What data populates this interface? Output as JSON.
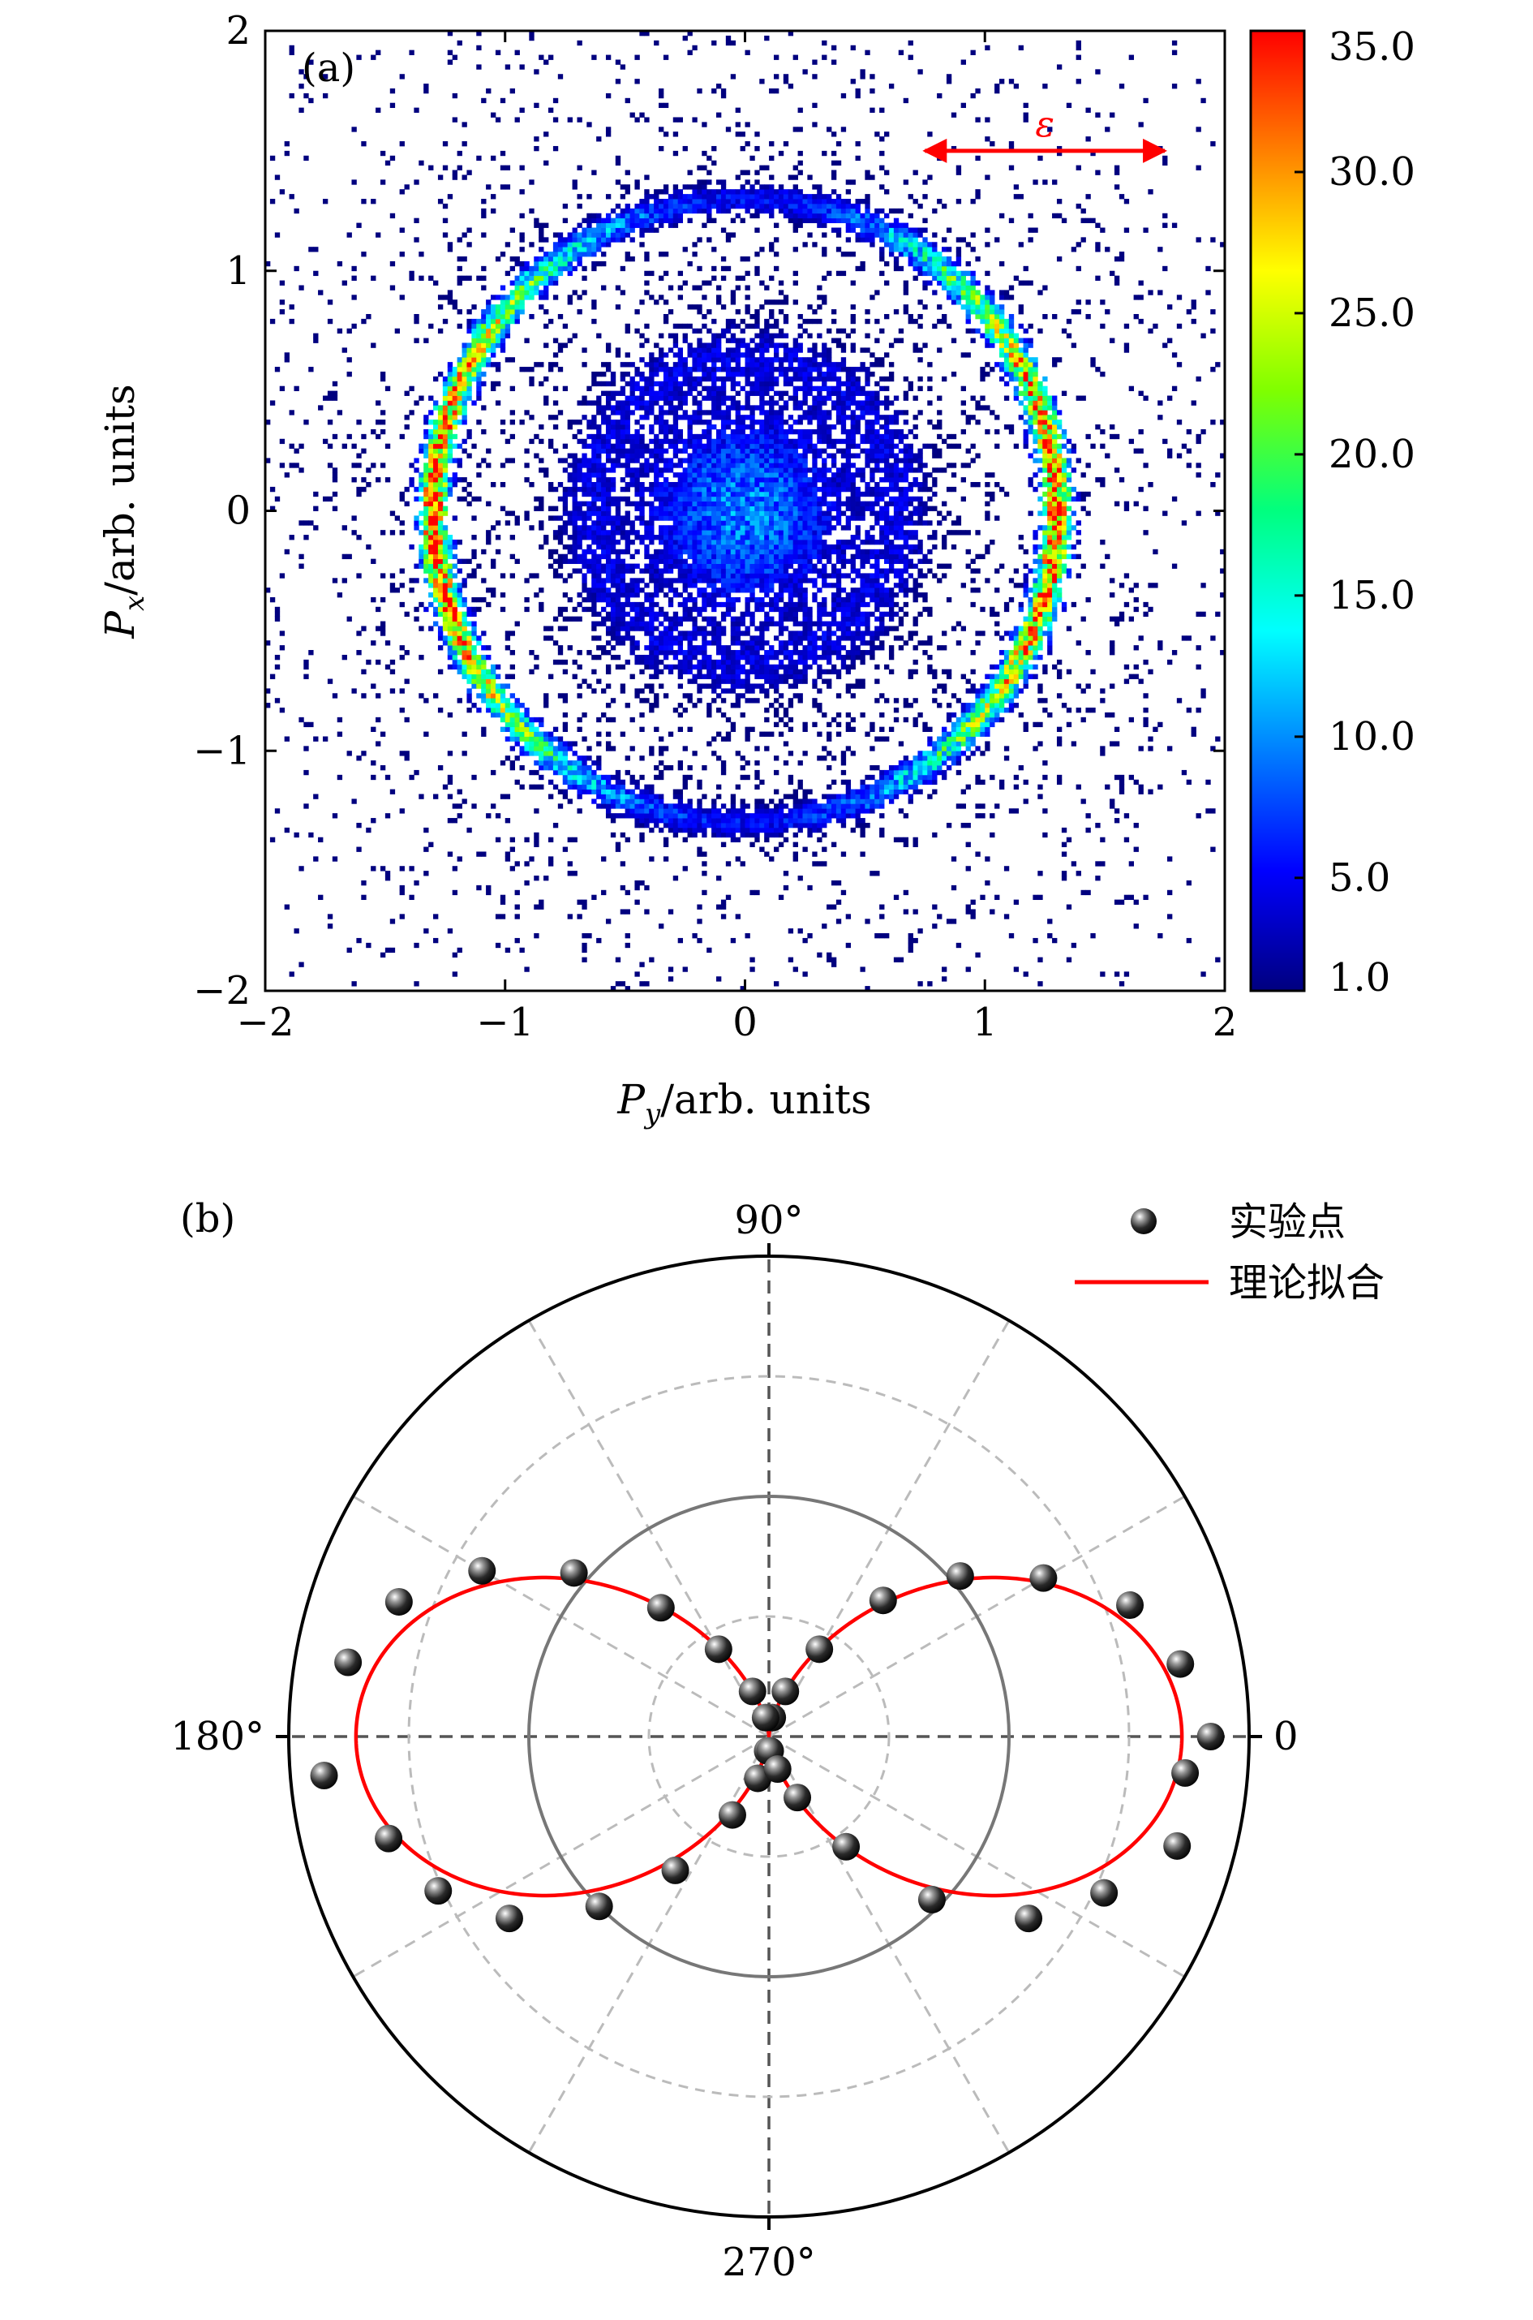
{
  "chart_data": [
    {
      "type": "heatmap",
      "panel_label": "(a)",
      "xlabel": {
        "symbol": "P",
        "sub": "y",
        "text": "/arb. units"
      },
      "ylabel": {
        "symbol": "P",
        "sub": "x",
        "text": "/arb. units"
      },
      "xlim": [
        -2,
        2
      ],
      "ylim": [
        -2,
        2
      ],
      "xticks": [
        {
          "value": -2,
          "label": "−2"
        },
        {
          "value": -1,
          "label": "−1"
        },
        {
          "value": 0,
          "label": "0"
        },
        {
          "value": 1,
          "label": "1"
        },
        {
          "value": 2,
          "label": "2"
        }
      ],
      "yticks": [
        {
          "value": -2,
          "label": "−2"
        },
        {
          "value": -1,
          "label": "−1"
        },
        {
          "value": 0,
          "label": "0"
        },
        {
          "value": 1,
          "label": "1"
        },
        {
          "value": 2,
          "label": "2"
        }
      ],
      "colorbar": {
        "range": [
          1.0,
          35.0
        ],
        "ticks": [
          {
            "value": 1.0,
            "label": "1.0"
          },
          {
            "value": 5.0,
            "label": "5.0"
          },
          {
            "value": 10.0,
            "label": "10.0"
          },
          {
            "value": 15.0,
            "label": "15.0"
          },
          {
            "value": 20.0,
            "label": "20.0"
          },
          {
            "value": 25.0,
            "label": "25.0"
          },
          {
            "value": 30.0,
            "label": "30.0"
          },
          {
            "value": 35.0,
            "label": "35.0"
          }
        ],
        "colormap": [
          "#00007f",
          "#0000ff",
          "#007fff",
          "#00ffff",
          "#00ff7f",
          "#7fff00",
          "#ffff00",
          "#ff7f00",
          "#ff0000"
        ]
      },
      "features": {
        "outer_ring_radius": 1.3,
        "outer_ring_width": 0.06,
        "inner_ring_radius": 0.65,
        "core_radius": 0.4,
        "dense_axis": "Py"
      },
      "annotation": {
        "text": "ε",
        "color": "#ff0000",
        "arrow_from": [
          0.75,
          1.5
        ],
        "arrow_to": [
          1.75,
          1.5
        ]
      }
    },
    {
      "type": "polar",
      "panel_label": "(b)",
      "angle_labels": [
        {
          "angle": 0,
          "label": "0"
        },
        {
          "angle": 90,
          "label": "90°"
        },
        {
          "angle": 180,
          "label": "180°"
        },
        {
          "angle": 270,
          "label": "270°"
        }
      ],
      "rmax": 1.0,
      "dashed_circles": [
        0.25,
        0.75
      ],
      "solid_circle": 0.5,
      "spoke_step_deg": 30,
      "fit": {
        "name": "理论拟合",
        "function": "cos^2",
        "amplitude": 0.86,
        "color": "#ff0000"
      },
      "series": [
        {
          "name": "实验点",
          "marker": "sphere",
          "points": [
            {
              "theta": 0,
              "r": 0.92,
              "err": 0.02
            },
            {
              "theta": 10,
              "r": 0.87,
              "err": 0.02
            },
            {
              "theta": 20,
              "r": 0.8,
              "err": 0.02
            },
            {
              "theta": 30,
              "r": 0.66,
              "err": 0.02
            },
            {
              "theta": 40,
              "r": 0.52,
              "err": 0.02
            },
            {
              "theta": 50,
              "r": 0.37,
              "err": 0.02
            },
            {
              "theta": 60,
              "r": 0.21,
              "err": 0.02
            },
            {
              "theta": 70,
              "r": 0.1,
              "err": 0.02
            },
            {
              "theta": 80,
              "r": 0.04,
              "err": 0.02
            },
            {
              "theta": 100,
              "r": 0.04,
              "err": 0.02
            },
            {
              "theta": 110,
              "r": 0.1,
              "err": 0.02
            },
            {
              "theta": 120,
              "r": 0.21,
              "err": 0.02
            },
            {
              "theta": 130,
              "r": 0.35,
              "err": 0.02
            },
            {
              "theta": 140,
              "r": 0.53,
              "err": 0.02
            },
            {
              "theta": 150,
              "r": 0.69,
              "err": 0.02
            },
            {
              "theta": 160,
              "r": 0.82,
              "err": 0.02
            },
            {
              "theta": 170,
              "r": 0.89,
              "err": 0.02
            },
            {
              "theta": 185,
              "r": 0.93,
              "err": 0.02
            },
            {
              "theta": 195,
              "r": 0.82,
              "err": 0.02
            },
            {
              "theta": 205,
              "r": 0.76,
              "err": 0.02
            },
            {
              "theta": 215,
              "r": 0.66,
              "err": 0.02
            },
            {
              "theta": 225,
              "r": 0.5,
              "err": 0.02
            },
            {
              "theta": 235,
              "r": 0.34,
              "err": 0.02
            },
            {
              "theta": 245,
              "r": 0.18,
              "err": 0.02
            },
            {
              "theta": 255,
              "r": 0.09,
              "err": 0.02
            },
            {
              "theta": 265,
              "r": 0.03,
              "err": 0.02
            },
            {
              "theta": 275,
              "r": 0.03,
              "err": 0.02
            },
            {
              "theta": 285,
              "r": 0.07,
              "err": 0.02
            },
            {
              "theta": 295,
              "r": 0.14,
              "err": 0.02
            },
            {
              "theta": 305,
              "r": 0.28,
              "err": 0.02
            },
            {
              "theta": 315,
              "r": 0.48,
              "err": 0.02
            },
            {
              "theta": 325,
              "r": 0.66,
              "err": 0.02
            },
            {
              "theta": 335,
              "r": 0.77,
              "err": 0.02
            },
            {
              "theta": 345,
              "r": 0.88,
              "err": 0.02
            },
            {
              "theta": 355,
              "r": 0.87,
              "err": 0.02
            }
          ]
        }
      ],
      "legend": {
        "position": "top-right",
        "entries": [
          {
            "label": "实验点",
            "kind": "marker"
          },
          {
            "label": "理论拟合",
            "kind": "line"
          }
        ]
      }
    }
  ]
}
